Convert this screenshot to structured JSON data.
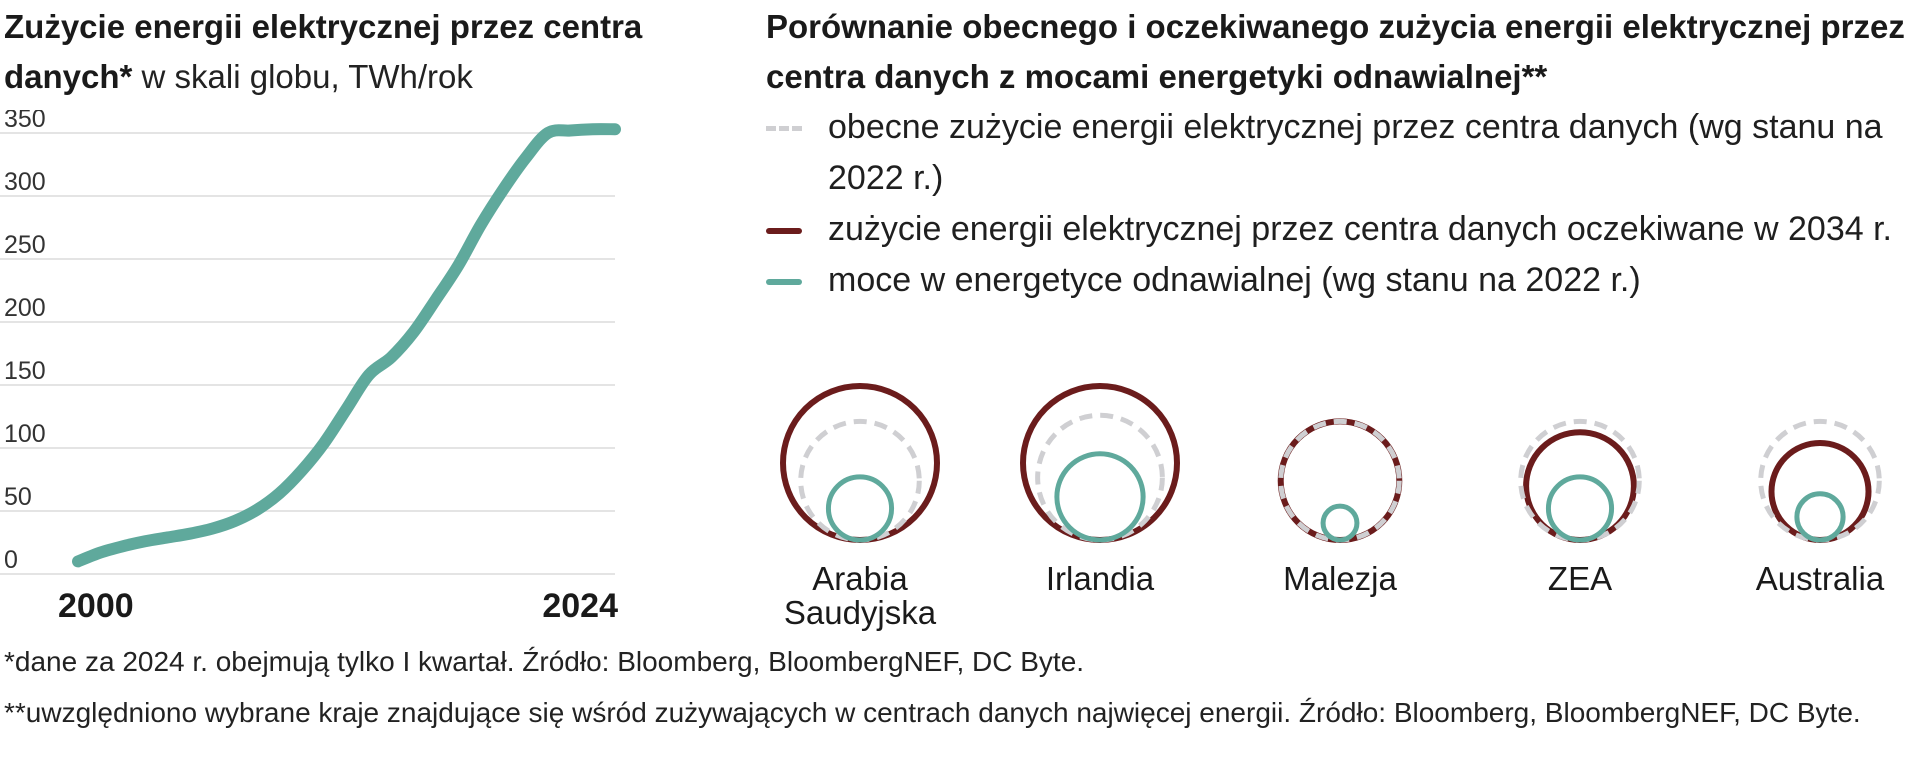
{
  "left_title": {
    "bold": "Zużycie energii elektrycznej przez centra danych*",
    "normal": " w skali globu, TWh/rok"
  },
  "right_title": "Porównanie obecnego i oczekiwanego zużycia energii elektrycznej przez centra danych z mocami energetyki odnawialnej**",
  "legend": [
    {
      "label": "obecne zużycie energii elektrycznej przez centra danych (wg stanu na 2022 r.)",
      "style": "dashed",
      "color": "#cfcfd2"
    },
    {
      "label": "zużycie energii elektrycznej przez centra danych oczekiwane w 2034 r.",
      "style": "solid",
      "color": "#6b1c1c"
    },
    {
      "label": "moce w energetyce odnawialnej (wg stanu na 2022 r.)",
      "style": "solid",
      "color": "#5fa99c"
    }
  ],
  "chart_data": [
    {
      "type": "line",
      "title": "Zużycie energii elektrycznej przez centra danych* w skali globu, TWh/rok",
      "xlabel": "",
      "ylabel": "TWh/rok",
      "ylim": [
        0,
        350
      ],
      "xlim": [
        2000,
        2024
      ],
      "yticks": [
        "0",
        "50",
        "100",
        "150",
        "200",
        "250",
        "300",
        "350"
      ],
      "xtick_labels": [
        "2000",
        "2024"
      ],
      "grid": true,
      "series": [
        {
          "name": "Zużycie energii",
          "color": "#5fa99c",
          "x": [
            2000,
            2001,
            2002,
            2003,
            2004,
            2005,
            2006,
            2007,
            2008,
            2009,
            2010,
            2011,
            2012,
            2013,
            2014,
            2015,
            2016,
            2017,
            2018,
            2019,
            2020,
            2021,
            2022,
            2023,
            2024
          ],
          "values": [
            10,
            17,
            22,
            26,
            29,
            32,
            36,
            42,
            51,
            64,
            82,
            104,
            131,
            158,
            172,
            192,
            218,
            245,
            277,
            305,
            330,
            350,
            352,
            353,
            353
          ]
        }
      ]
    },
    {
      "type": "bubble",
      "title": "Porównanie obecnego i oczekiwanego zużycia energii elektrycznej przez centra danych z mocami energetyki odnawialnej**",
      "unit": "relative circle diameter (100 = largest expected 2034 circle)",
      "categories": [
        "Arabia Saudyjska",
        "Irlandia",
        "Malezja",
        "ZEA",
        "Australia"
      ],
      "series": [
        {
          "name": "obecne zużycie energii elektrycznej przez centra danych (wg stanu na 2022 r.)",
          "style": "dashed",
          "color": "#cfcfd2",
          "values": [
            77,
            81,
            77,
            77,
            77
          ]
        },
        {
          "name": "zużycie energii elektrycznej przez centra danych oczekiwane w 2034 r.",
          "style": "solid",
          "color": "#6b1c1c",
          "values": [
            100,
            100,
            77,
            70,
            63
          ]
        },
        {
          "name": "moce w energetyce odnawialnej (wg stanu na 2022 r.)",
          "style": "solid",
          "color": "#5fa99c",
          "values": [
            41,
            56,
            22,
            41,
            30
          ]
        }
      ]
    }
  ],
  "footnotes": [
    "*dane za 2024 r. obejmują tylko I kwartał. Źródło: Bloomberg, BloombergNEF, DC Byte.",
    "**uwzględniono wybrane kraje znajdujące się wśród zużywających w centrach danych najwięcej energii. Źródło: Bloomberg, BloombergNEF, DC Byte."
  ]
}
